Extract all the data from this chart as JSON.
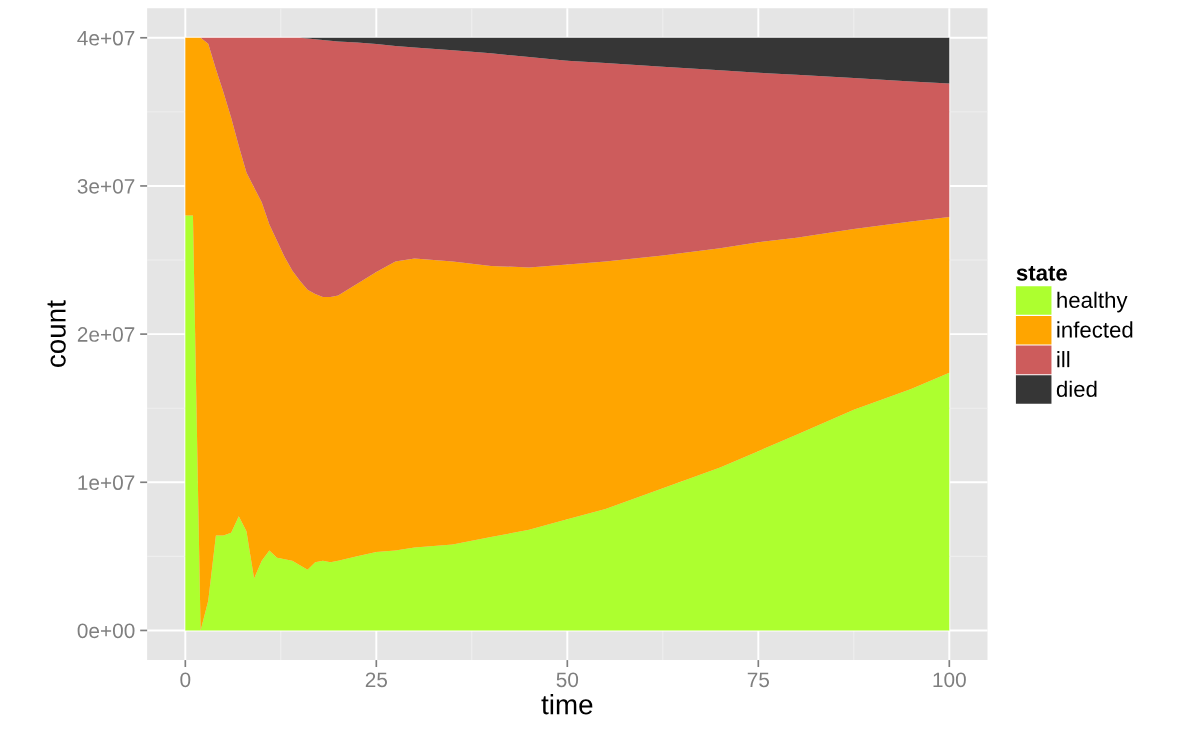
{
  "chart_data": {
    "type": "area",
    "stacked": true,
    "xlabel": "time",
    "ylabel": "count",
    "legend_title": "state",
    "legend": "right",
    "grid": true,
    "x": [
      0,
      1,
      2,
      3,
      4,
      5,
      6,
      7,
      8,
      9,
      10,
      11,
      12,
      13,
      14,
      15,
      16,
      17,
      18,
      19,
      20,
      22.5,
      25,
      27.5,
      30,
      35,
      40,
      45,
      50,
      55,
      62.5,
      70,
      75,
      80,
      87.5,
      95,
      100
    ],
    "series": [
      {
        "name": "healthy",
        "color": "#adff2f",
        "values": [
          28000000,
          28000000,
          0,
          2000000,
          6400000,
          6400000,
          6600000,
          7700000,
          6700000,
          3500000,
          4700000,
          5400000,
          4900000,
          4800000,
          4700000,
          4400000,
          4100000,
          4600000,
          4700000,
          4600000,
          4700000,
          5000000,
          5300000,
          5400000,
          5600000,
          5800000,
          6300000,
          6800000,
          7500000,
          8200000,
          9600000,
          11000000,
          12100000,
          13200000,
          14900000,
          16300000,
          17400000
        ]
      },
      {
        "name": "infected",
        "color": "#ffa500",
        "values": [
          12000000,
          12000000,
          40000000,
          37600000,
          31500000,
          29900000,
          28000000,
          25000000,
          24200000,
          26400000,
          24200000,
          22000000,
          21400000,
          20400000,
          19600000,
          19200000,
          18900000,
          18100000,
          17800000,
          17900000,
          17900000,
          18400000,
          18900000,
          19500000,
          19500000,
          19100000,
          18300000,
          17700000,
          17200000,
          16700000,
          15700000,
          14800000,
          14100000,
          13300000,
          12200000,
          11300000,
          10500000
        ]
      },
      {
        "name": "ill",
        "color": "#cd5c5c",
        "values": [
          0,
          0,
          0,
          400000,
          2100000,
          3700000,
          5400000,
          7300000,
          9100000,
          10100000,
          11100000,
          12600000,
          13700000,
          14800000,
          15700000,
          16400000,
          16950000,
          17200000,
          17350000,
          17300000,
          17150000,
          16280000,
          15380000,
          14550000,
          14250000,
          14250000,
          14350000,
          14200000,
          13750000,
          13400000,
          12750000,
          12000000,
          11440000,
          11000000,
          10180000,
          9450000,
          9020000
        ]
      },
      {
        "name": "died",
        "color": "#363636",
        "values": [
          0,
          0,
          0,
          0,
          0,
          0,
          0,
          0,
          0,
          0,
          0,
          0,
          0,
          0,
          0,
          0,
          50000,
          100000,
          150000,
          200000,
          250000,
          320000,
          420000,
          550000,
          650000,
          850000,
          1050000,
          1300000,
          1550000,
          1700000,
          1950000,
          2200000,
          2360000,
          2500000,
          2720000,
          2950000,
          3080000
        ]
      }
    ],
    "xlim": [
      -5,
      105
    ],
    "xticks": [
      0,
      25,
      50,
      75,
      100
    ],
    "ylim": [
      -2000000,
      42000000
    ],
    "yticks": [
      {
        "value": 0,
        "label": "0e+00"
      },
      {
        "value": 10000000,
        "label": "1e+07"
      },
      {
        "value": 20000000,
        "label": "2e+07"
      },
      {
        "value": 30000000,
        "label": "3e+07"
      },
      {
        "value": 40000000,
        "label": "4e+07"
      }
    ]
  }
}
